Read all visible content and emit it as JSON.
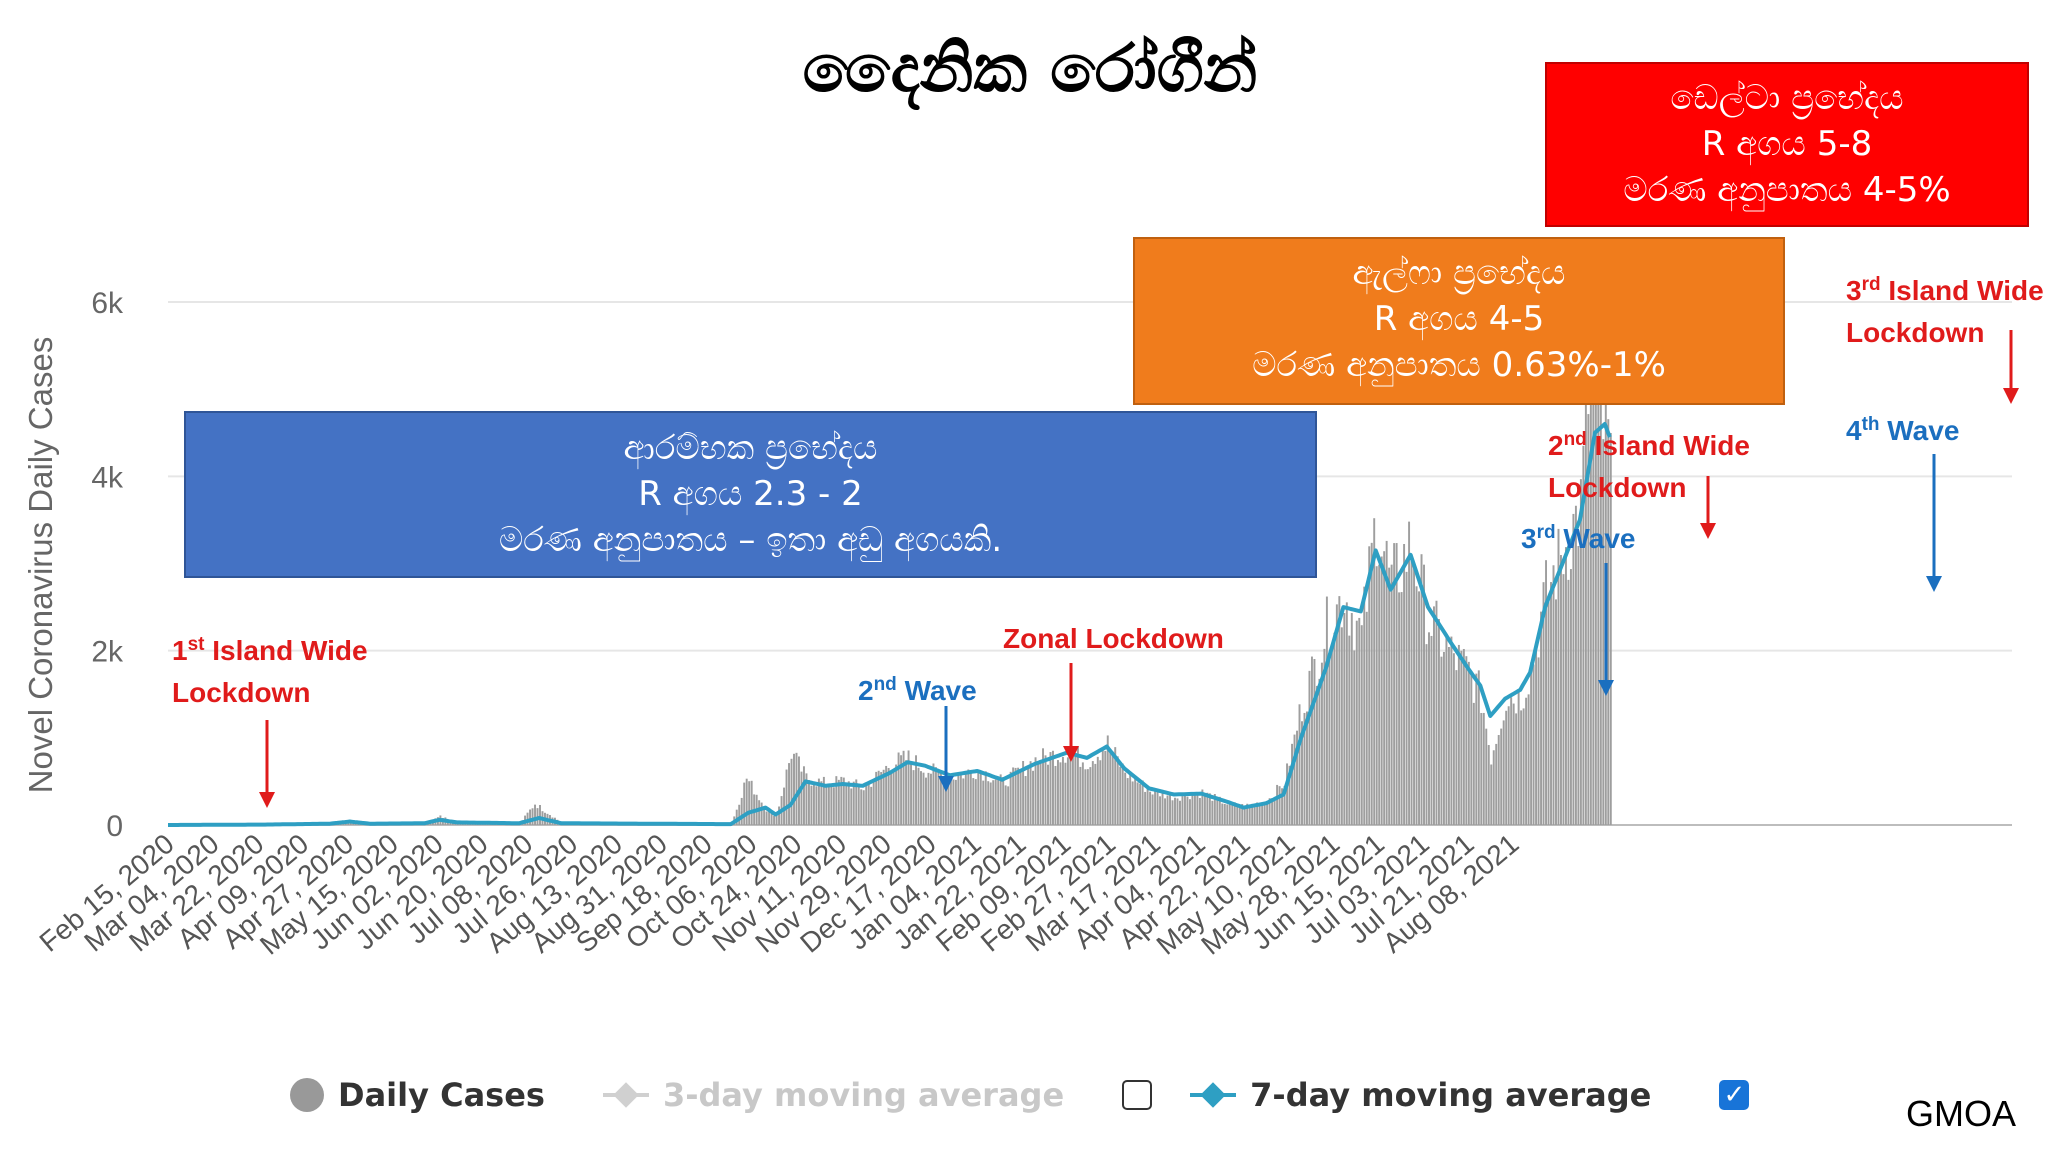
{
  "title": "දෛනික රෝගීන්",
  "boxes": {
    "delta": {
      "line1": "ඩෙල්ටා ප්‍රභේදය",
      "line2": "R  අගය 5-8",
      "line3": "මරණ අනුපාතය 4-5%"
    },
    "alpha": {
      "line1": "ඇල්ෆා ප්‍රභේදය",
      "line2": "R  අගය 4-5",
      "line3": "මරණ අනුපාතය 0.63%-1%"
    },
    "original": {
      "line1": "ආරම්භක ප්‍රභේදය",
      "line2": "R  අගය 2.3 - 2",
      "line3": "මරණ අනුපාතය – ඉතා අඩු අගයකි."
    }
  },
  "legend": {
    "daily": "Daily Cases",
    "ma3": "3-day moving average",
    "ma7": "7-day moving average",
    "checkmark": "✓"
  },
  "source": "GMOA",
  "chart_data": {
    "type": "bar",
    "title": "",
    "ylabel": "Novel Coronavirus Daily Cases",
    "xlabel": "",
    "ylim": [
      0,
      6500
    ],
    "y_ticks": [
      {
        "value": 0,
        "label": "0"
      },
      {
        "value": 2000,
        "label": "2k"
      },
      {
        "value": 4000,
        "label": "4k"
      },
      {
        "value": 6000,
        "label": "6k"
      }
    ],
    "x_start": "2020-02-15",
    "x_end": "2021-08-27",
    "x_tick_labels": [
      "Feb 15, 2020",
      "Mar 04, 2020",
      "Mar 22, 2020",
      "Apr 09, 2020",
      "Apr 27, 2020",
      "May 15, 2020",
      "Jun 02, 2020",
      "Jun 20, 2020",
      "Jul 08, 2020",
      "Jul 26, 2020",
      "Aug 13, 2020",
      "Aug 31, 2020",
      "Sep 18, 2020",
      "Oct 06, 2020",
      "Oct 24, 2020",
      "Nov 11, 2020",
      "Nov 29, 2020",
      "Dec 17, 2020",
      "Jan 04, 2021",
      "Jan 22, 2021",
      "Feb 09, 2021",
      "Feb 27, 2021",
      "Mar 17, 2021",
      "Apr 04, 2021",
      "Apr 22, 2021",
      "May 10, 2021",
      "May 28, 2021",
      "Jun 15, 2021",
      "Jul 03, 2021",
      "Jul 21, 2021",
      "Aug 08, 2021"
    ],
    "grid": true,
    "series": [
      {
        "name": "7-day moving average",
        "color": "#2e9fc3",
        "type": "line",
        "points": [
          [
            "2020-02-15",
            0
          ],
          [
            "2020-03-25",
            5
          ],
          [
            "2020-04-20",
            15
          ],
          [
            "2020-04-28",
            40
          ],
          [
            "2020-05-06",
            15
          ],
          [
            "2020-05-28",
            20
          ],
          [
            "2020-06-03",
            60
          ],
          [
            "2020-06-10",
            30
          ],
          [
            "2020-07-05",
            20
          ],
          [
            "2020-07-13",
            80
          ],
          [
            "2020-07-22",
            20
          ],
          [
            "2020-09-28",
            10
          ],
          [
            "2020-10-05",
            140
          ],
          [
            "2020-10-12",
            200
          ],
          [
            "2020-10-16",
            120
          ],
          [
            "2020-10-22",
            230
          ],
          [
            "2020-10-28",
            500
          ],
          [
            "2020-11-05",
            450
          ],
          [
            "2020-11-12",
            470
          ],
          [
            "2020-11-20",
            450
          ],
          [
            "2020-12-01",
            600
          ],
          [
            "2020-12-08",
            720
          ],
          [
            "2020-12-15",
            680
          ],
          [
            "2020-12-25",
            570
          ],
          [
            "2021-01-05",
            620
          ],
          [
            "2021-01-15",
            520
          ],
          [
            "2021-01-28",
            700
          ],
          [
            "2021-02-10",
            830
          ],
          [
            "2021-02-18",
            770
          ],
          [
            "2021-02-26",
            900
          ],
          [
            "2021-03-05",
            650
          ],
          [
            "2021-03-15",
            420
          ],
          [
            "2021-03-25",
            350
          ],
          [
            "2021-04-05",
            360
          ],
          [
            "2021-04-15",
            270
          ],
          [
            "2021-04-22",
            200
          ],
          [
            "2021-05-01",
            250
          ],
          [
            "2021-05-08",
            350
          ],
          [
            "2021-05-15",
            1000
          ],
          [
            "2021-05-25",
            1800
          ],
          [
            "2021-06-01",
            2500
          ],
          [
            "2021-06-08",
            2450
          ],
          [
            "2021-06-14",
            3150
          ],
          [
            "2021-06-20",
            2700
          ],
          [
            "2021-06-28",
            3100
          ],
          [
            "2021-07-05",
            2500
          ],
          [
            "2021-07-14",
            2100
          ],
          [
            "2021-07-21",
            1800
          ],
          [
            "2021-07-26",
            1600
          ],
          [
            "2021-07-30",
            1250
          ],
          [
            "2021-08-05",
            1450
          ],
          [
            "2021-08-11",
            1550
          ],
          [
            "2021-08-15",
            1750
          ],
          [
            "2021-08-21",
            2500
          ],
          [
            "2021-08-28",
            3000
          ],
          [
            "2021-09-04",
            3500
          ],
          [
            "2021-09-10",
            4500
          ],
          [
            "2021-09-14",
            4600
          ],
          [
            "2021-09-16",
            4450
          ]
        ]
      },
      {
        "name": "Daily Cases",
        "color": "#9e9e9e",
        "type": "bar",
        "points": [
          [
            "2020-02-15",
            0
          ],
          [
            "2020-03-25",
            5
          ],
          [
            "2020-04-20",
            15
          ],
          [
            "2020-04-28",
            45
          ],
          [
            "2020-05-06",
            15
          ],
          [
            "2020-05-28",
            20
          ],
          [
            "2020-06-03",
            100
          ],
          [
            "2020-06-10",
            30
          ],
          [
            "2020-07-05",
            20
          ],
          [
            "2020-07-11",
            250
          ],
          [
            "2020-07-22",
            20
          ],
          [
            "2020-09-28",
            10
          ],
          [
            "2020-10-04",
            550
          ],
          [
            "2020-10-12",
            180
          ],
          [
            "2020-10-16",
            110
          ],
          [
            "2020-10-22",
            850
          ],
          [
            "2020-10-28",
            550
          ],
          [
            "2020-11-05",
            480
          ],
          [
            "2020-11-12",
            520
          ],
          [
            "2020-11-20",
            430
          ],
          [
            "2020-12-01",
            720
          ],
          [
            "2020-12-08",
            780
          ],
          [
            "2020-12-15",
            650
          ],
          [
            "2020-12-25",
            560
          ],
          [
            "2021-01-05",
            650
          ],
          [
            "2021-01-15",
            500
          ],
          [
            "2021-01-28",
            760
          ],
          [
            "2021-02-10",
            860
          ],
          [
            "2021-02-18",
            740
          ],
          [
            "2021-02-26",
            950
          ],
          [
            "2021-03-05",
            620
          ],
          [
            "2021-03-15",
            400
          ],
          [
            "2021-03-25",
            330
          ],
          [
            "2021-04-05",
            380
          ],
          [
            "2021-04-15",
            250
          ],
          [
            "2021-04-22",
            220
          ],
          [
            "2021-05-01",
            280
          ],
          [
            "2021-05-08",
            500
          ],
          [
            "2021-05-15",
            1400
          ],
          [
            "2021-05-25",
            2300
          ],
          [
            "2021-06-01",
            2700
          ],
          [
            "2021-06-08",
            2200
          ],
          [
            "2021-06-14",
            3600
          ],
          [
            "2021-06-20",
            2800
          ],
          [
            "2021-06-28",
            3300
          ],
          [
            "2021-07-05",
            2400
          ],
          [
            "2021-07-14",
            2000
          ],
          [
            "2021-07-21",
            1800
          ],
          [
            "2021-07-26",
            1500
          ],
          [
            "2021-07-30",
            800
          ],
          [
            "2021-08-05",
            1500
          ],
          [
            "2021-08-11",
            1500
          ],
          [
            "2021-08-15",
            1850
          ],
          [
            "2021-08-21",
            2700
          ],
          [
            "2021-08-28",
            3200
          ],
          [
            "2021-09-04",
            3700
          ],
          [
            "2021-09-08",
            5500
          ],
          [
            "2021-09-12",
            4800
          ],
          [
            "2021-09-16",
            4300
          ]
        ]
      }
    ],
    "annotations": [
      {
        "sup_prefix": "1",
        "sup": "st",
        "line1": "Island Wide",
        "line2": "Lockdown",
        "date": "2020-03-20",
        "color": "#e01b1b"
      },
      {
        "sup_prefix": "2",
        "sup": "nd",
        "line1": "Wave",
        "line2": "",
        "date": "2020-10-04",
        "color": "#1b6fbf"
      },
      {
        "sup_prefix": "",
        "sup": "",
        "line1": "Zonal Lockdown",
        "line2": "",
        "date": "2020-10-30",
        "color": "#e01b1b"
      },
      {
        "sup_prefix": "3",
        "sup": "rd",
        "line1": "Wave",
        "line2": "",
        "date": "2021-04-22",
        "color": "#1b6fbf"
      },
      {
        "sup_prefix": "2",
        "sup": "nd",
        "line1": "Island Wide",
        "line2": "Lockdown",
        "date": "2021-06-14",
        "color": "#e01b1b"
      },
      {
        "sup_prefix": "4",
        "sup": "th",
        "line1": "Wave",
        "line2": "",
        "date": "2021-08-18",
        "color": "#1b6fbf"
      },
      {
        "sup_prefix": "3",
        "sup": "rd",
        "line1": "Island Wide",
        "line2": "Lockdown",
        "date": "2021-09-17",
        "color": "#e01b1b"
      }
    ]
  }
}
